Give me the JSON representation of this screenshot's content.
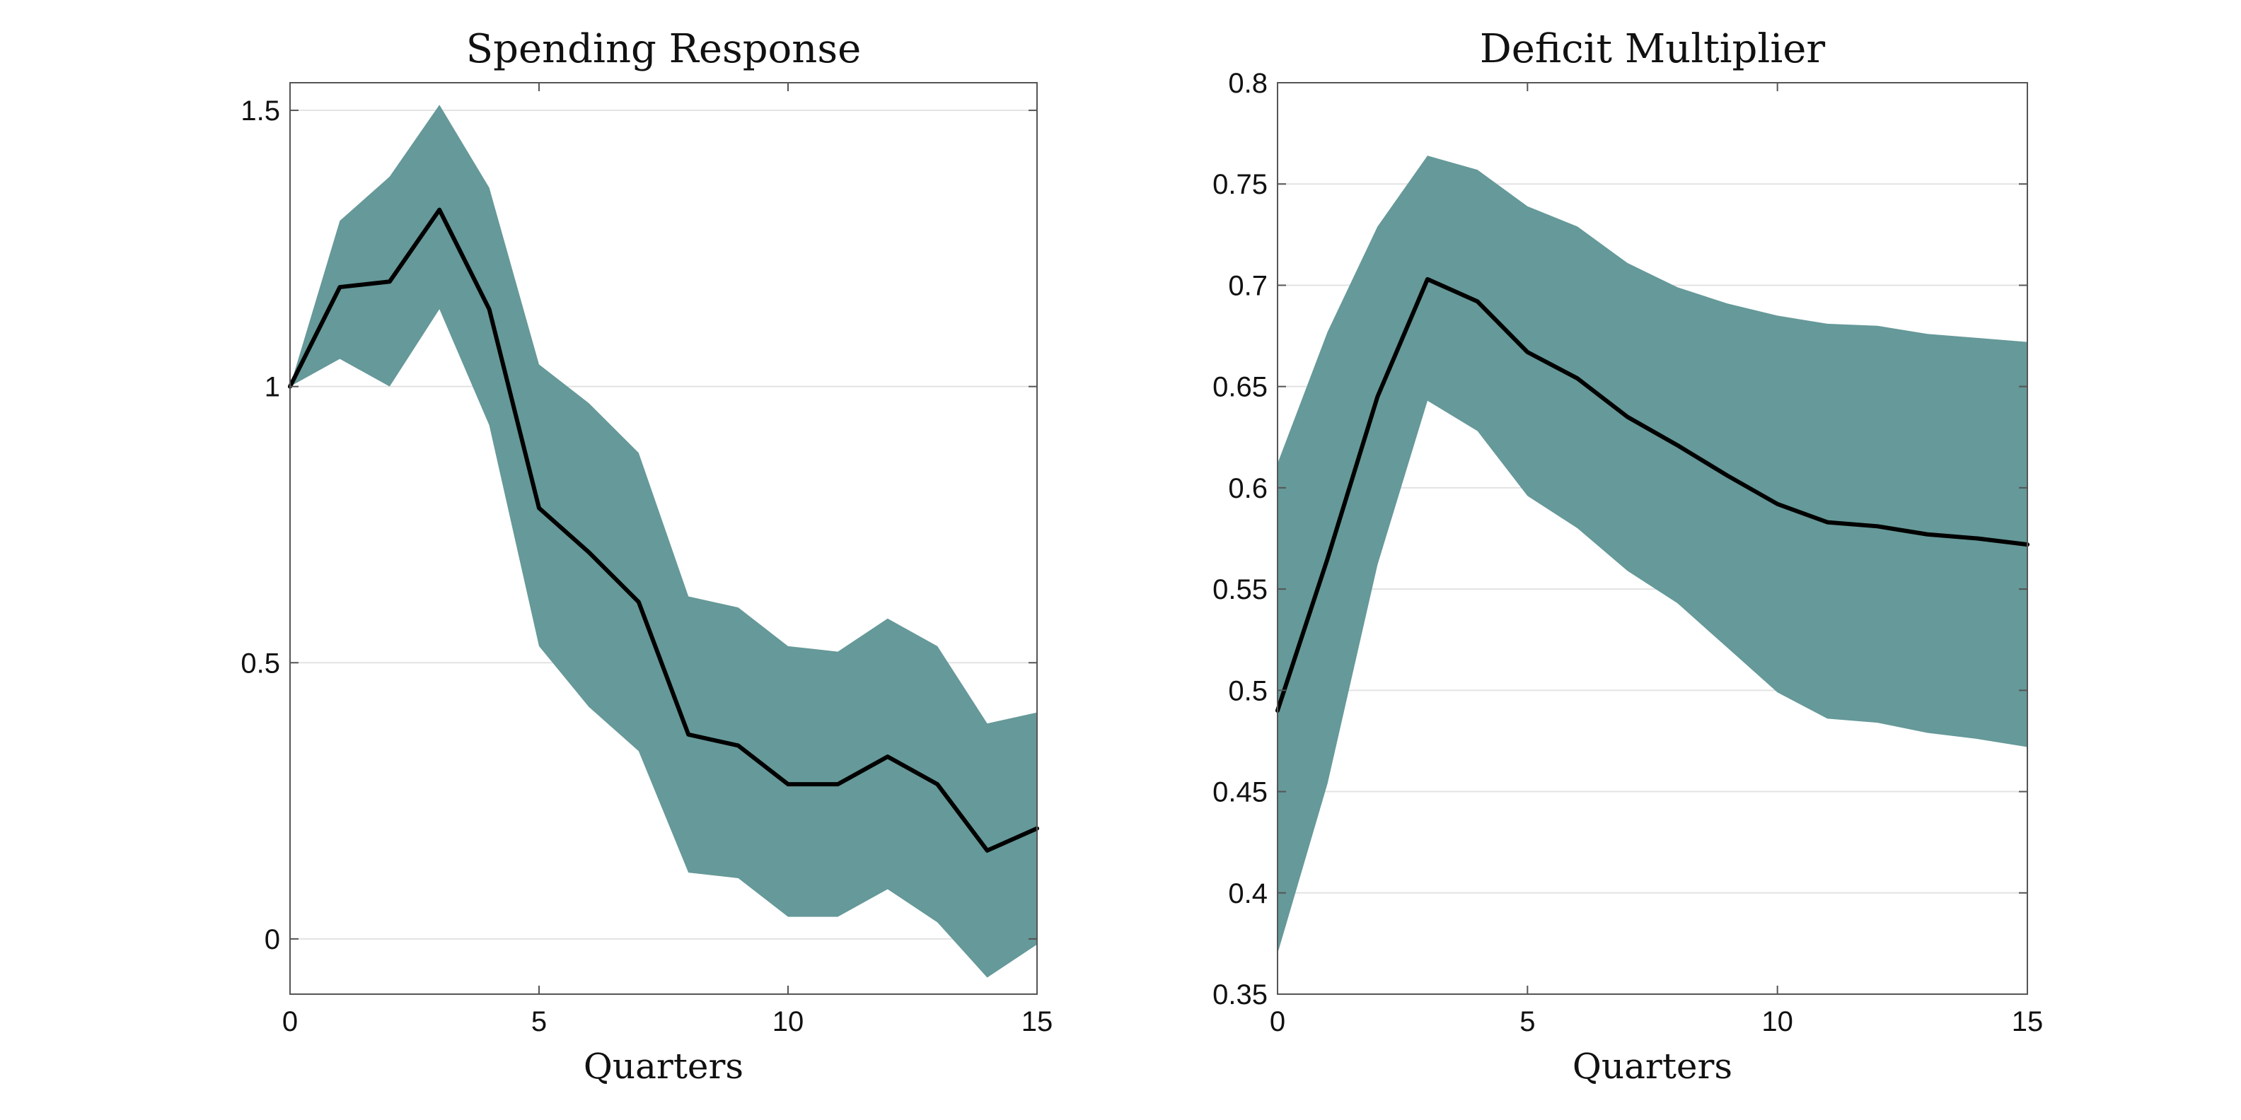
{
  "colors": {
    "band": "#669999",
    "line": "#000000",
    "grid": "#e3e3e3",
    "frame": "#555555"
  },
  "chart_data": [
    {
      "type": "area",
      "title": "Spending Response",
      "xlabel": "Quarters",
      "ylabel": "",
      "xlim": [
        0,
        15
      ],
      "ylim": [
        -0.1,
        1.55
      ],
      "xticks": [
        0,
        5,
        10,
        15
      ],
      "xtick_labels": [
        "0",
        "5",
        "10",
        "15"
      ],
      "yticks": [
        0,
        0.5,
        1,
        1.5
      ],
      "ytick_labels": [
        "0",
        "0.5",
        "1",
        "1.5"
      ],
      "grid": true,
      "x": [
        0,
        1,
        2,
        3,
        4,
        5,
        6,
        7,
        8,
        9,
        10,
        11,
        12,
        13,
        14,
        15
      ],
      "series": [
        {
          "role": "point-estimate",
          "values": [
            1.0,
            1.18,
            1.19,
            1.32,
            1.14,
            0.78,
            0.7,
            0.61,
            0.37,
            0.35,
            0.28,
            0.28,
            0.33,
            0.28,
            0.16,
            0.2
          ]
        },
        {
          "role": "band-upper",
          "values": [
            1.0,
            1.3,
            1.38,
            1.51,
            1.36,
            1.04,
            0.97,
            0.88,
            0.62,
            0.6,
            0.53,
            0.52,
            0.58,
            0.53,
            0.39,
            0.41
          ]
        },
        {
          "role": "band-lower",
          "values": [
            1.0,
            1.05,
            1.0,
            1.14,
            0.93,
            0.53,
            0.42,
            0.34,
            0.12,
            0.11,
            0.04,
            0.04,
            0.09,
            0.03,
            -0.07,
            -0.01
          ]
        }
      ]
    },
    {
      "type": "area",
      "title": "Deficit Multiplier",
      "xlabel": "Quarters",
      "ylabel": "",
      "xlim": [
        0,
        15
      ],
      "ylim": [
        0.35,
        0.8
      ],
      "xticks": [
        0,
        5,
        10,
        15
      ],
      "xtick_labels": [
        "0",
        "5",
        "10",
        "15"
      ],
      "yticks": [
        0.35,
        0.4,
        0.45,
        0.5,
        0.55,
        0.6,
        0.65,
        0.7,
        0.75,
        0.8
      ],
      "ytick_labels": [
        "0.35",
        "0.4",
        "0.45",
        "0.5",
        "0.55",
        "0.6",
        "0.65",
        "0.7",
        "0.75",
        "0.8"
      ],
      "grid": true,
      "x": [
        0,
        1,
        2,
        3,
        4,
        5,
        6,
        7,
        8,
        9,
        10,
        11,
        12,
        13,
        14,
        15
      ],
      "series": [
        {
          "role": "point-estimate",
          "values": [
            0.49,
            0.565,
            0.645,
            0.703,
            0.692,
            0.667,
            0.654,
            0.635,
            0.621,
            0.606,
            0.592,
            0.583,
            0.581,
            0.577,
            0.575,
            0.572
          ]
        },
        {
          "role": "band-upper",
          "values": [
            0.612,
            0.677,
            0.729,
            0.764,
            0.757,
            0.739,
            0.729,
            0.711,
            0.699,
            0.691,
            0.685,
            0.681,
            0.68,
            0.676,
            0.674,
            0.672
          ]
        },
        {
          "role": "band-lower",
          "values": [
            0.37,
            0.454,
            0.562,
            0.643,
            0.628,
            0.596,
            0.58,
            0.559,
            0.543,
            0.521,
            0.499,
            0.486,
            0.484,
            0.479,
            0.476,
            0.472
          ]
        }
      ]
    }
  ]
}
